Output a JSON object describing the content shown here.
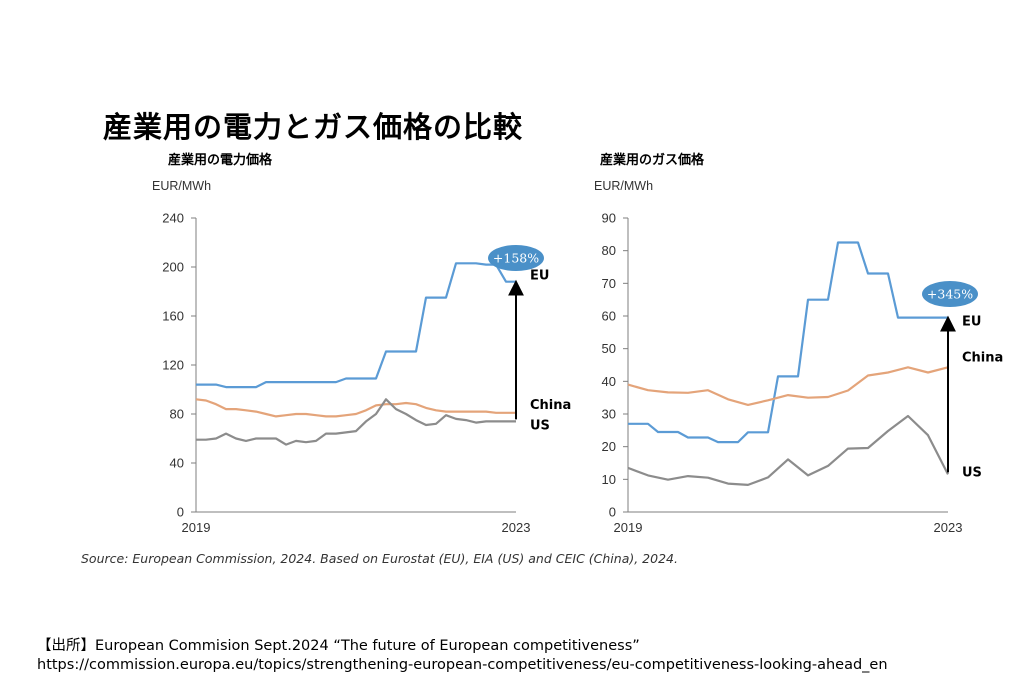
{
  "page": {
    "title": "産業用の電力とガス価格の比較",
    "source": "Source: European Commission, 2024. Based on Eurostat (EU), EIA (US) and CEIC (China), 2024.",
    "citation_prefix": "【出所】",
    "citation_text": "European Commision Sept.2024 “The future of European competitiveness”",
    "citation_url": "https://commission.europa.eu/topics/strengthening-european-competitiveness/eu-competitiveness-looking-ahead_en"
  },
  "colors": {
    "EU": "#5b9bd5",
    "China": "#e4a47a",
    "US": "#8c8c8c",
    "callout": "#4a90c8"
  },
  "chart_data": [
    {
      "type": "line",
      "title": "産業用の電力価格",
      "ylabel": "EUR/MWh",
      "xlabel": "",
      "ylim": [
        0,
        240
      ],
      "yticks": [
        0,
        40,
        80,
        120,
        160,
        200,
        240
      ],
      "xlim": [
        2019,
        2023
      ],
      "xticks": [
        2019,
        2023
      ],
      "grid": false,
      "annotation": {
        "text": "+158%",
        "series": "EU"
      },
      "series": [
        {
          "name": "EU",
          "x": [
            2019,
            2019.125,
            2019.25,
            2019.375,
            2019.5,
            2019.625,
            2019.75,
            2019.875,
            2020,
            2020.125,
            2020.25,
            2020.375,
            2020.5,
            2020.625,
            2020.75,
            2020.875,
            2021,
            2021.125,
            2021.25,
            2021.375,
            2021.5,
            2021.625,
            2021.75,
            2021.875,
            2022,
            2022.125,
            2022.25,
            2022.375,
            2022.5,
            2022.625,
            2022.75,
            2022.875,
            2023
          ],
          "y": [
            104,
            104,
            104,
            102,
            102,
            102,
            102,
            106,
            106,
            106,
            106,
            106,
            106,
            106,
            106,
            109,
            109,
            109,
            109,
            131,
            131,
            131,
            131,
            175,
            175,
            175,
            203,
            203,
            203,
            202,
            202,
            188,
            188
          ]
        },
        {
          "name": "China",
          "x": [
            2019,
            2019.125,
            2019.25,
            2019.375,
            2019.5,
            2019.625,
            2019.75,
            2019.875,
            2020,
            2020.125,
            2020.25,
            2020.375,
            2020.5,
            2020.625,
            2020.75,
            2020.875,
            2021,
            2021.125,
            2021.25,
            2021.375,
            2021.5,
            2021.625,
            2021.75,
            2021.875,
            2022,
            2022.125,
            2022.25,
            2022.375,
            2022.5,
            2022.625,
            2022.75,
            2022.875,
            2023
          ],
          "y": [
            92,
            91,
            88,
            84,
            84,
            83,
            82,
            80,
            78,
            79,
            80,
            80,
            79,
            78,
            78,
            79,
            80,
            83,
            87,
            88,
            88,
            89,
            88,
            85,
            83,
            82,
            82,
            82,
            82,
            82,
            81,
            81,
            81
          ]
        },
        {
          "name": "US",
          "x": [
            2019,
            2019.125,
            2019.25,
            2019.375,
            2019.5,
            2019.625,
            2019.75,
            2019.875,
            2020,
            2020.125,
            2020.25,
            2020.375,
            2020.5,
            2020.625,
            2020.75,
            2020.875,
            2021,
            2021.125,
            2021.25,
            2021.375,
            2021.5,
            2021.625,
            2021.75,
            2021.875,
            2022,
            2022.125,
            2022.25,
            2022.375,
            2022.5,
            2022.625,
            2022.75,
            2022.875,
            2023
          ],
          "y": [
            59,
            59,
            60,
            64,
            60,
            58,
            60,
            60,
            60,
            55,
            58,
            57,
            58,
            64,
            64,
            65,
            66,
            74,
            80,
            92,
            84,
            80,
            75,
            71,
            72,
            79,
            76,
            75,
            73,
            74,
            74,
            74,
            74
          ]
        }
      ],
      "end_labels": {
        "EU": "EU",
        "China": "China",
        "US": "US"
      }
    },
    {
      "type": "line",
      "title": "産業用のガス価格",
      "ylabel": "EUR/MWh",
      "xlabel": "",
      "ylim": [
        0,
        90
      ],
      "yticks": [
        0,
        10,
        20,
        30,
        40,
        50,
        60,
        70,
        80,
        90
      ],
      "xlim": [
        2019,
        2023
      ],
      "xticks": [
        2019,
        2023
      ],
      "grid": false,
      "annotation": {
        "text": "+345%",
        "series": "EU"
      },
      "series": [
        {
          "name": "EU",
          "x": [
            2019,
            2019.125,
            2019.25,
            2019.375,
            2019.5,
            2019.625,
            2019.75,
            2019.875,
            2020,
            2020.125,
            2020.25,
            2020.375,
            2020.5,
            2020.625,
            2020.75,
            2020.875,
            2021,
            2021.125,
            2021.25,
            2021.375,
            2021.5,
            2021.625,
            2021.75,
            2021.875,
            2022,
            2022.125,
            2022.25,
            2022.375,
            2022.5,
            2022.625,
            2022.75,
            2022.875,
            2023
          ],
          "y": [
            27,
            27,
            27,
            24.5,
            24.5,
            24.5,
            22.8,
            22.8,
            22.8,
            21.4,
            21.4,
            21.4,
            24.4,
            24.4,
            24.4,
            41.5,
            41.5,
            41.5,
            65,
            65,
            65,
            82.5,
            82.5,
            82.5,
            73,
            73,
            73,
            59.5,
            59.5,
            59.5,
            59.5,
            59.5,
            59.5
          ]
        },
        {
          "name": "China",
          "x": [
            2019,
            2019.25,
            2019.5,
            2019.75,
            2020,
            2020.25,
            2020.5,
            2020.75,
            2021,
            2021.25,
            2021.5,
            2021.75,
            2022,
            2022.25,
            2022.5,
            2022.75,
            2023
          ],
          "y": [
            39,
            37.3,
            36.6,
            36.5,
            37.3,
            34.5,
            32.8,
            34.2,
            35.8,
            35,
            35.2,
            37.2,
            41.8,
            42.7,
            44.3,
            42.7,
            44.3
          ]
        },
        {
          "name": "US",
          "x": [
            2019,
            2019.25,
            2019.5,
            2019.75,
            2020,
            2020.25,
            2020.5,
            2020.75,
            2021,
            2021.25,
            2021.5,
            2021.75,
            2022,
            2022.25,
            2022.5,
            2022.75,
            2023
          ],
          "y": [
            13.5,
            11.2,
            9.9,
            11,
            10.5,
            8.7,
            8.3,
            10.6,
            16.1,
            11.2,
            14.1,
            19.4,
            19.6,
            24.8,
            29.4,
            23.5,
            11.5
          ]
        }
      ],
      "end_labels": {
        "EU": "EU",
        "China": "China",
        "US": "US"
      }
    }
  ]
}
